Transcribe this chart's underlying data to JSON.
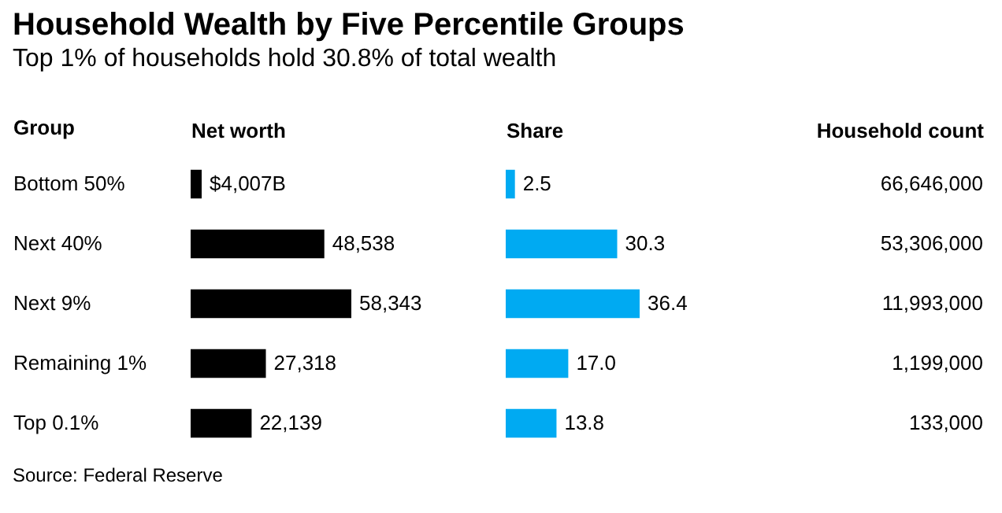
{
  "chart_data": [
    {
      "type": "bar",
      "orientation": "horizontal",
      "title": "Household Wealth by Five Percentile Groups",
      "subtitle": "Top 1% of households hold 30.8% of total wealth",
      "ylabel": "Group",
      "xlabel": "Net worth",
      "categories": [
        "Bottom 50%",
        "Next 40%",
        "Next 9%",
        "Remaining 1%",
        "Top 0.1%"
      ],
      "values": [
        4007,
        48538,
        58343,
        27318,
        22139
      ],
      "value_labels": [
        "$4,007B",
        "48,538",
        "58,343",
        "27,318",
        "22,139"
      ],
      "color": "#000000",
      "tick_labels": "y",
      "annotations": [
        "Source: Federal Reserve"
      ]
    },
    {
      "type": "bar",
      "orientation": "horizontal",
      "xlabel": "Share",
      "values": [
        2.5,
        30.3,
        36.4,
        17.0,
        13.8
      ],
      "value_labels": [
        "2.5",
        "30.3",
        "36.4",
        "17.0",
        "13.8"
      ],
      "color": "#00aaf2",
      "tick_labels": false
    },
    {
      "type": "other",
      "xlabel": "Household count",
      "annotations": [
        "66,646,000",
        "53,306,000",
        "11,993,000",
        "1,199,000",
        "133,000"
      ]
    }
  ]
}
